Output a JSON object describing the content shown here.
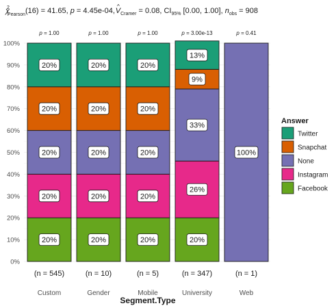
{
  "chart_data": {
    "type": "bar",
    "stacked": true,
    "subtitle_parts": {
      "chi": "χ",
      "chi_sup": "2",
      "chi_sub": "Pearson",
      "after_chi": "(16) = 41.65, ",
      "p_sym": "p",
      "p_val": " = 4.45e-04, ",
      "v_sym": "V",
      "v_hat": "^",
      "v_sub": "Cramer",
      "v_val": " = 0.08, CI",
      "ci_sub": "95%",
      "ci_val": " [0.00, 1.00], ",
      "n_sym": "n",
      "n_sub": "obs",
      "n_val": " = 908"
    },
    "xlabel": "Segment.Type",
    "ylabel": "",
    "ylim": [
      0,
      1
    ],
    "y_ticks": [
      "0%",
      "10%",
      "20%",
      "30%",
      "40%",
      "50%",
      "60%",
      "70%",
      "80%",
      "90%",
      "100%"
    ],
    "categories": [
      "Custom",
      "Gender",
      "Mobile",
      "University",
      "Web"
    ],
    "n_labels": [
      "(n = 545)",
      "(n = 10)",
      "(n = 5)",
      "(n = 347)",
      "(n = 1)"
    ],
    "p_labels": [
      "p = 1.00",
      "p = 1.00",
      "p = 1.00",
      "p = 3.00e-13",
      "p = 0.41"
    ],
    "legend_title": "Answer",
    "series": [
      {
        "name": "Facebook",
        "color": "#66A61E",
        "values": [
          0.2,
          0.2,
          0.2,
          0.2,
          0.0
        ],
        "labels": [
          "20%",
          "20%",
          "20%",
          "20%",
          ""
        ]
      },
      {
        "name": "Instagram",
        "color": "#E7298A",
        "values": [
          0.2,
          0.2,
          0.2,
          0.26,
          0.0
        ],
        "labels": [
          "20%",
          "20%",
          "20%",
          "26%",
          ""
        ]
      },
      {
        "name": "None",
        "color": "#7570B3",
        "values": [
          0.2,
          0.2,
          0.2,
          0.33,
          1.0
        ],
        "labels": [
          "20%",
          "20%",
          "20%",
          "33%",
          "100%"
        ]
      },
      {
        "name": "Snapchat",
        "color": "#D95F02",
        "values": [
          0.2,
          0.2,
          0.2,
          0.09,
          0.0
        ],
        "labels": [
          "20%",
          "20%",
          "20%",
          "9%",
          ""
        ]
      },
      {
        "name": "Twitter",
        "color": "#1B9E77",
        "values": [
          0.2,
          0.2,
          0.2,
          0.13,
          0.0
        ],
        "labels": [
          "20%",
          "20%",
          "20%",
          "13%",
          ""
        ]
      }
    ],
    "legend_order": [
      "Twitter",
      "Snapchat",
      "None",
      "Instagram",
      "Facebook"
    ],
    "grid": true,
    "legend_position": "right"
  }
}
